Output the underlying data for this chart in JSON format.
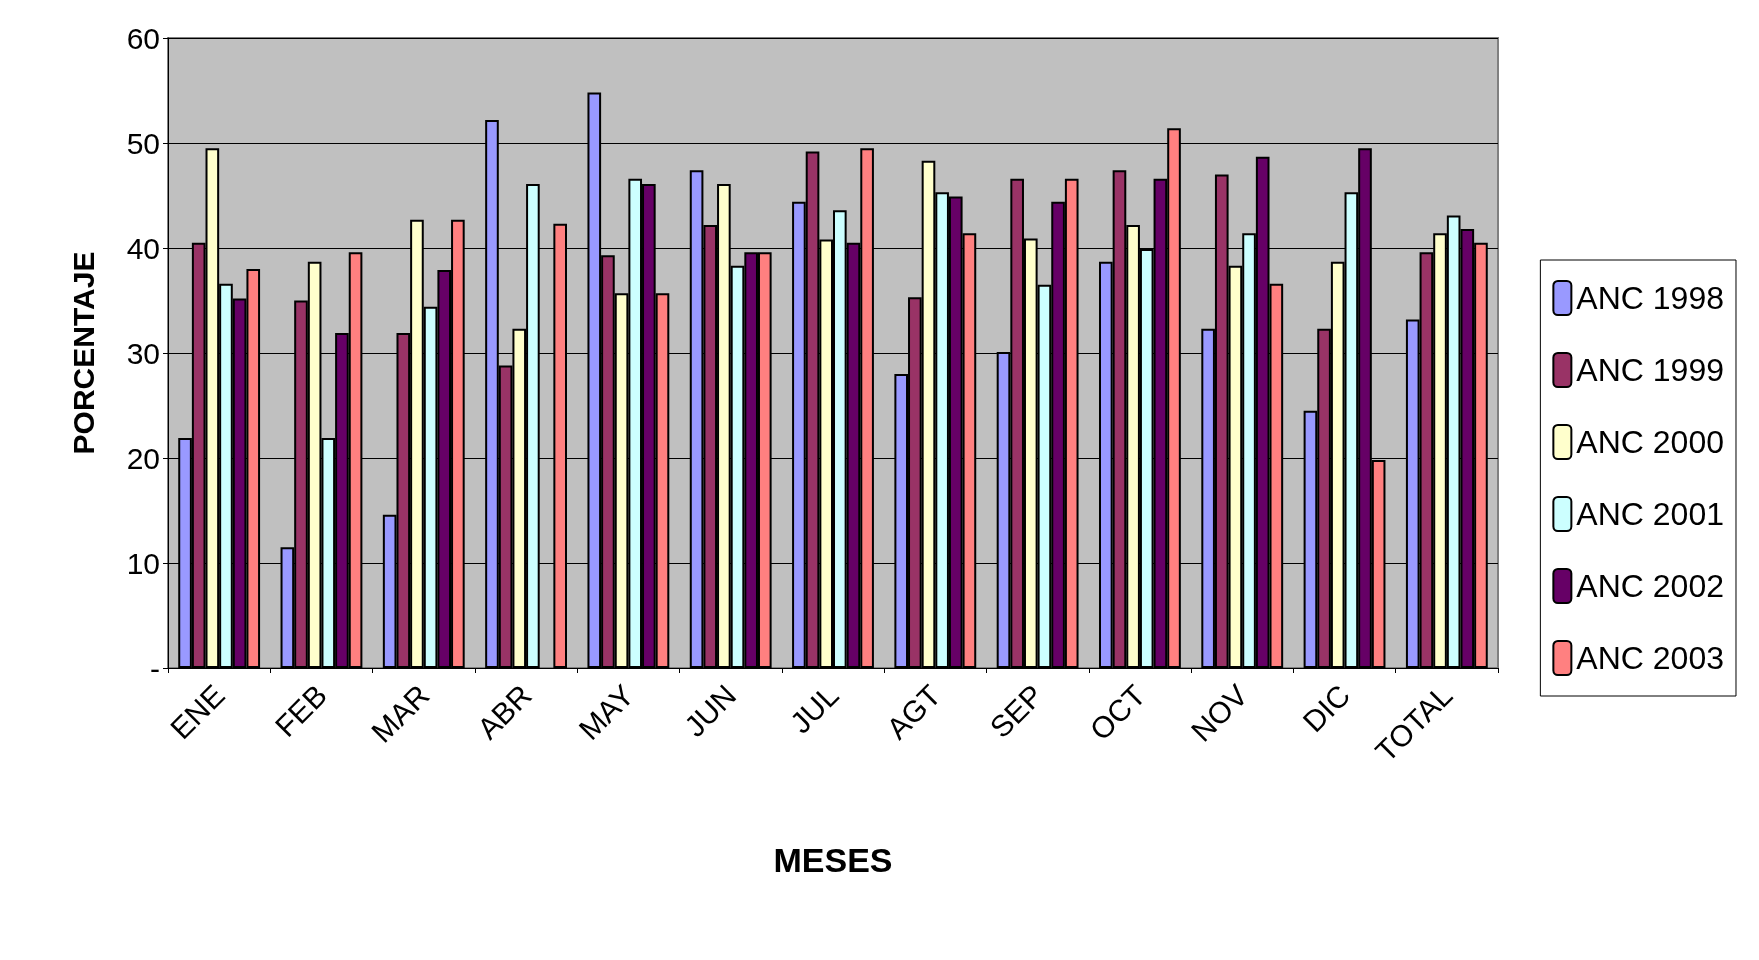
{
  "chart_data": {
    "type": "bar",
    "xlabel": "MESES",
    "ylabel": "PORCENTAJE",
    "categories": [
      "ENE",
      "FEB",
      "MAR",
      "ABR",
      "MAY",
      "JUN",
      "JUL",
      "AGT",
      "SEP",
      "OCT",
      "NOV",
      "DIC",
      "TOTAL"
    ],
    "series": [
      {
        "name": "ANC 1998",
        "color": "#9999ff",
        "values": [
          21.9,
          11.5,
          14.6,
          52.2,
          54.8,
          47.4,
          44.4,
          28,
          30.1,
          38.7,
          32.3,
          24.5,
          33.2
        ]
      },
      {
        "name": "ANC 1999",
        "color": "#993366",
        "values": [
          40.5,
          35,
          31.9,
          28.8,
          39.3,
          42.2,
          49.2,
          35.3,
          46.6,
          47.4,
          47,
          32.3,
          39.6
        ]
      },
      {
        "name": "ANC 2000",
        "color": "#ffffcc",
        "values": [
          49.5,
          38.7,
          42.7,
          32.3,
          35.7,
          46.1,
          40.8,
          48.3,
          40.9,
          42.2,
          38.3,
          38.7,
          41.4
        ]
      },
      {
        "name": "ANC 2001",
        "color": "#ccffff",
        "values": [
          36.6,
          21.9,
          34.4,
          46.1,
          46.6,
          38.3,
          43.6,
          45.3,
          36.5,
          39.9,
          41.4,
          45.3,
          43.1
        ]
      },
      {
        "name": "ANC 2002",
        "color": "#660066",
        "values": [
          35.2,
          31.9,
          37.9,
          null,
          46.1,
          39.6,
          40.5,
          44.9,
          44.4,
          46.6,
          48.7,
          49.5,
          41.8
        ]
      },
      {
        "name": "ANC 2003",
        "color": "#ff8080",
        "values": [
          38,
          39.6,
          42.7,
          42.3,
          35.7,
          39.6,
          49.5,
          41.4,
          46.6,
          51.4,
          36.6,
          19.8,
          40.5
        ]
      }
    ],
    "ylim": [
      0,
      60
    ],
    "yticks": [
      {
        "value": 0,
        "label": "-"
      },
      10,
      20,
      30,
      40,
      50,
      60
    ],
    "grid": "y",
    "legend": "right"
  }
}
